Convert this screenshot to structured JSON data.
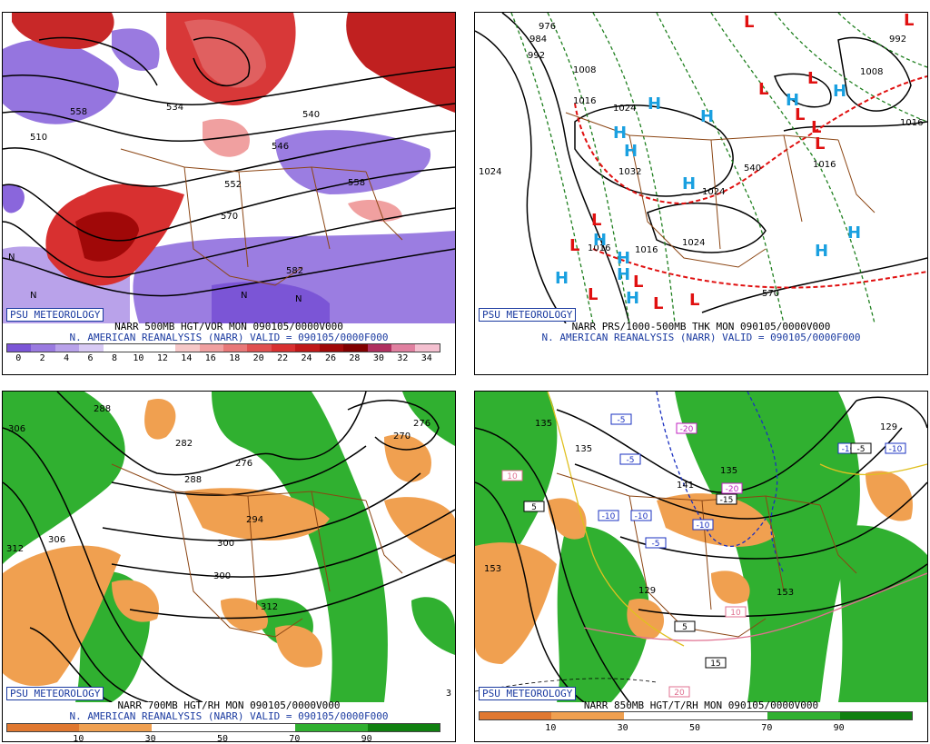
{
  "panels": {
    "p1": {
      "badge": "PSU METEOROLOGY",
      "title_line1": "NARR 500MB HGT/VOR MON 090105/0000V000",
      "title_line2": "N. AMERICAN REANALYSIS (NARR) VALID = 090105/0000F000",
      "colorbar_labels": [
        "0",
        "2",
        "4",
        "6",
        "8",
        "10",
        "12",
        "14",
        "16",
        "18",
        "20",
        "22",
        "24",
        "26",
        "28",
        "30",
        "32",
        "34"
      ],
      "colorbar_colors": [
        "#7b55d6",
        "#9a7ae0",
        "#b9a2ea",
        "#d8caf4",
        "#ffffff",
        "#ffffff",
        "#ffffff",
        "#f6c8c8",
        "#f0a0a0",
        "#e87878",
        "#e05050",
        "#d83030",
        "#c01818",
        "#a00808",
        "#800000",
        "#b03060",
        "#e080a0",
        "#f4c0d0"
      ],
      "contour_labels": [
        "558",
        "546",
        "540",
        "534",
        "510",
        "552",
        "570",
        "558",
        "582",
        "N",
        "N",
        "N",
        "N"
      ]
    },
    "p2": {
      "badge": "PSU METEOROLOGY",
      "title_line1": "NARR PRS/1000-500MB THK MON 090105/0000V000",
      "title_line2": "N. AMERICAN REANALYSIS (NARR) VALID = 090105/0000F000",
      "contour_labels": [
        "976",
        "984",
        "992",
        "1008",
        "1016",
        "1024",
        "1024",
        "1032",
        "1024",
        "1016",
        "1016",
        "1024",
        "1008",
        "992",
        "1016",
        "540",
        "570",
        "1016"
      ],
      "highs_label": "H",
      "lows_label": "L"
    },
    "p3": {
      "badge": "PSU METEOROLOGY",
      "title_line1": "NARR 700MB HGT/RH MON 090105/0000V000",
      "title_line2": "N. AMERICAN REANALYSIS (NARR) VALID = 090105/0000F000",
      "colorbar_labels": [
        "10",
        "30",
        "50",
        "70",
        "90"
      ],
      "contour_labels": [
        "306",
        "282",
        "294",
        "288",
        "276",
        "270",
        "276",
        "312",
        "306",
        "300",
        "300",
        "312",
        "288"
      ],
      "corner_text": "3"
    },
    "p4": {
      "badge": "PSU METEOROLOGY",
      "title_line1": "NARR 850MB HGT/T/RH MON 090105/0000V000",
      "colorbar_labels": [
        "10",
        "30",
        "50",
        "70",
        "90"
      ],
      "contour_labels": [
        "135",
        "141",
        "153",
        "135",
        "153",
        "129",
        "135",
        "129"
      ],
      "temp_tags": [
        "-5",
        "-5",
        "-10",
        "-10",
        "-10",
        "-5",
        "-10",
        "-20",
        "-20",
        "-15",
        "-5",
        "-10",
        "5",
        "10",
        "5",
        "10",
        "15",
        "20"
      ]
    }
  },
  "colors": {
    "rh_orange": "#f0a050",
    "rh_orange_dark": "#e07830",
    "rh_green": "#30b030",
    "rh_green_dark": "#108010",
    "border_brown": "#8b4513",
    "badge_blue": "#1a3aa0"
  }
}
